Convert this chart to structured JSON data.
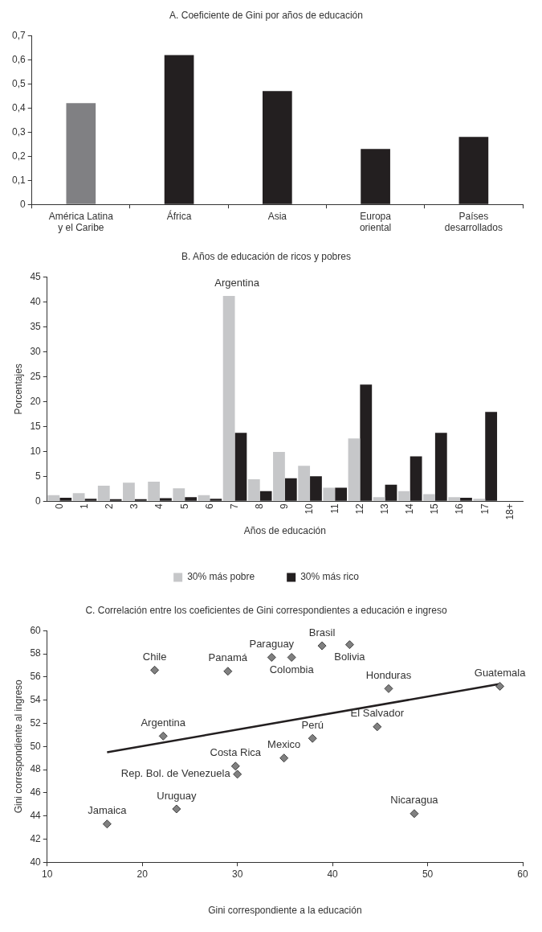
{
  "chart_data": [
    {
      "type": "bar",
      "title": "A. Coeficiente de Gini por años de educación",
      "categories": [
        "América Latina\ny el Caribe",
        "África",
        "Asia",
        "Europa\noriental",
        "Países\ndesarrollados"
      ],
      "values": [
        0.42,
        0.62,
        0.47,
        0.23,
        0.28
      ],
      "colors": [
        "#808083",
        "#231f20",
        "#231f20",
        "#231f20",
        "#231f20"
      ],
      "ylim": [
        0,
        0.7
      ],
      "yticks": [
        0,
        {
          "value": 0.1,
          "label": "0,1"
        },
        {
          "value": 0.2,
          "label": "0,2"
        },
        {
          "value": 0.3,
          "label": "0,3"
        },
        {
          "value": 0.4,
          "label": "0,4"
        },
        {
          "value": 0.5,
          "label": "0,5"
        },
        {
          "value": 0.6,
          "label": "0,6"
        },
        {
          "value": 0.7,
          "label": "0,7"
        }
      ],
      "grid": false,
      "legend": false
    },
    {
      "type": "bar",
      "title": "B. Años de educación de ricos y pobres",
      "xlabel": "Años de educación",
      "ylabel": "Porcentajes",
      "categories": [
        "0",
        "1",
        "2",
        "3",
        "4",
        "5",
        "6",
        "7",
        "8",
        "9",
        "10",
        "11",
        "12",
        "13",
        "14",
        "15",
        "16",
        "17",
        "18+"
      ],
      "series": [
        {
          "name": "30% más pobre",
          "color": "#c6c7c9",
          "values": [
            1.2,
            1.6,
            3.1,
            3.7,
            3.9,
            2.6,
            1.2,
            41.2,
            4.4,
            9.9,
            7.1,
            2.7,
            12.6,
            0.8,
            2.0,
            1.4,
            0.8,
            0.5,
            null
          ]
        },
        {
          "name": "30% más rico",
          "color": "#231f20",
          "values": [
            0.7,
            0.5,
            0.4,
            0.4,
            0.6,
            0.8,
            0.5,
            13.7,
            2.0,
            4.6,
            5.0,
            2.7,
            23.4,
            3.3,
            9.0,
            13.7,
            0.7,
            17.9,
            null
          ]
        }
      ],
      "ylim": [
        0,
        45
      ],
      "yticks": [
        0,
        5,
        10,
        15,
        20,
        25,
        30,
        35,
        40,
        45
      ],
      "annotations": [
        "Argentina"
      ],
      "grid": false,
      "legend": "bottom"
    },
    {
      "type": "scatter",
      "title": "C. Correlación entre los coeficientes de Gini correspondientes a educación e ingreso",
      "xlabel": "Gini correspondiente a la educación",
      "ylabel": "Gini correspondiente al ingreso",
      "series": [
        {
          "color": "#808080",
          "marker": "diamond",
          "x": [
            16.3,
            23.6,
            22.2,
            21.3,
            29.0,
            33.6,
            35.7,
            38.9,
            41.8,
            45.9,
            57.6,
            44.7,
            48.6,
            37.9,
            34.9,
            29.8,
            30.0
          ],
          "values": [
            43.3,
            44.6,
            50.9,
            56.6,
            56.5,
            57.7,
            57.7,
            58.7,
            58.8,
            55.0,
            55.2,
            51.7,
            44.2,
            50.7,
            49.0,
            48.3,
            47.6
          ],
          "value_labels": [
            "Jamaica",
            "Uruguay",
            "Argentina",
            "Chile",
            "Panamá",
            "Paraguay",
            "Colombia",
            "Brasil",
            "Bolivia",
            "Honduras",
            "Guatemala",
            "El Salvador",
            "Nicaragua",
            "Perú",
            "Mexico",
            "Costa Rica",
            "Rep. Bol. de Venezuela"
          ]
        },
        {
          "type": "line",
          "color": "#231f20",
          "marker": "none",
          "x": [
            16.3,
            57.6
          ],
          "values": [
            49.5,
            55.4
          ]
        }
      ],
      "xlim": [
        10,
        60
      ],
      "xticks": [
        10,
        20,
        30,
        40,
        50,
        60
      ],
      "ylim": [
        40,
        60
      ],
      "yticks": [
        40,
        42,
        44,
        46,
        48,
        50,
        52,
        54,
        56,
        58,
        60
      ],
      "grid": false,
      "legend": false
    }
  ]
}
